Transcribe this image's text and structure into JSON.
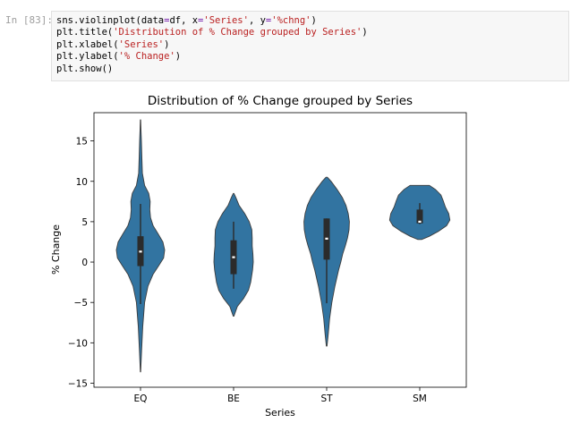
{
  "cell": {
    "prompt": "In [83]:",
    "code": [
      [
        {
          "t": "sns.violinplot(data"
        },
        {
          "t": "=",
          "c": "op"
        },
        {
          "t": "df, x"
        },
        {
          "t": "=",
          "c": "op"
        },
        {
          "t": "'Series'",
          "c": "str"
        },
        {
          "t": ", y"
        },
        {
          "t": "=",
          "c": "op"
        },
        {
          "t": "'%chng'",
          "c": "str"
        },
        {
          "t": ")"
        }
      ],
      [
        {
          "t": "plt.title("
        },
        {
          "t": "'Distribution of % Change grouped by Series'",
          "c": "str"
        },
        {
          "t": ")"
        }
      ],
      [
        {
          "t": "plt.xlabel("
        },
        {
          "t": "'Series'",
          "c": "str"
        },
        {
          "t": ")"
        }
      ],
      [
        {
          "t": "plt.ylabel("
        },
        {
          "t": "'% Change'",
          "c": "str"
        },
        {
          "t": ")"
        }
      ],
      [
        {
          "t": "plt.show()"
        }
      ]
    ]
  },
  "colors": {
    "violin_fill": "#3274a1",
    "box": "#2b2b2b",
    "median": "#ffffff"
  },
  "chart_data": {
    "type": "violin",
    "title": "Distribution of % Change grouped by Series",
    "xlabel": "Series",
    "ylabel": "% Change",
    "ylim": [
      -15.5,
      18.5
    ],
    "yticks": [
      -15,
      -10,
      -5,
      0,
      5,
      10,
      15
    ],
    "ytick_labels": [
      "−15",
      "−10",
      "−5",
      "0",
      "5",
      "10",
      "15"
    ],
    "categories": [
      "EQ",
      "BE",
      "ST",
      "SM"
    ],
    "violins": [
      {
        "category": "EQ",
        "whisker_low": -5.2,
        "q1": -0.5,
        "median": 1.3,
        "q3": 3.2,
        "whisker_high": 7.2,
        "min": -13.6,
        "max": 17.6,
        "profile": [
          [
            -13.6,
            0.005
          ],
          [
            -11,
            0.03
          ],
          [
            -8,
            0.06
          ],
          [
            -5,
            0.11
          ],
          [
            -3,
            0.2
          ],
          [
            -1.5,
            0.34
          ],
          [
            -0.5,
            0.48
          ],
          [
            0.5,
            0.62
          ],
          [
            1.5,
            0.65
          ],
          [
            2.5,
            0.6
          ],
          [
            3.5,
            0.47
          ],
          [
            4.5,
            0.34
          ],
          [
            5.5,
            0.27
          ],
          [
            6.5,
            0.25
          ],
          [
            7.5,
            0.26
          ],
          [
            8.5,
            0.22
          ],
          [
            9.5,
            0.11
          ],
          [
            11,
            0.05
          ],
          [
            13,
            0.035
          ],
          [
            15,
            0.025
          ],
          [
            16.5,
            0.012
          ],
          [
            17.6,
            0.004
          ]
        ]
      },
      {
        "category": "BE",
        "whisker_low": -3.3,
        "q1": -1.5,
        "median": 0.6,
        "q3": 2.7,
        "whisker_high": 5.0,
        "min": -6.7,
        "max": 8.5,
        "profile": [
          [
            -6.7,
            0.01
          ],
          [
            -5.5,
            0.1
          ],
          [
            -4.5,
            0.27
          ],
          [
            -3.5,
            0.4
          ],
          [
            -2.5,
            0.46
          ],
          [
            -1,
            0.51
          ],
          [
            0,
            0.53
          ],
          [
            1,
            0.52
          ],
          [
            2,
            0.5
          ],
          [
            3,
            0.5
          ],
          [
            4,
            0.49
          ],
          [
            5,
            0.42
          ],
          [
            6,
            0.3
          ],
          [
            7,
            0.15
          ],
          [
            8,
            0.06
          ],
          [
            8.5,
            0.01
          ]
        ]
      },
      {
        "category": "ST",
        "whisker_low": -5.1,
        "q1": 0.3,
        "median": 2.9,
        "q3": 5.4,
        "whisker_high": 5.4,
        "min": -10.4,
        "max": 10.5,
        "profile": [
          [
            -10.4,
            0.01
          ],
          [
            -9,
            0.04
          ],
          [
            -7,
            0.08
          ],
          [
            -5,
            0.14
          ],
          [
            -3,
            0.22
          ],
          [
            -1,
            0.32
          ],
          [
            0,
            0.38
          ],
          [
            1,
            0.43
          ],
          [
            2,
            0.5
          ],
          [
            3,
            0.56
          ],
          [
            4,
            0.6
          ],
          [
            5,
            0.61
          ],
          [
            6,
            0.58
          ],
          [
            7,
            0.52
          ],
          [
            8,
            0.42
          ],
          [
            9,
            0.28
          ],
          [
            10,
            0.12
          ],
          [
            10.5,
            0.02
          ]
        ]
      },
      {
        "category": "SM",
        "whisker_low": 4.7,
        "q1": 4.8,
        "median": 5.0,
        "q3": 6.5,
        "whisker_high": 7.3,
        "min": 2.8,
        "max": 9.5,
        "profile": [
          [
            2.8,
            0.05
          ],
          [
            3.2,
            0.26
          ],
          [
            3.8,
            0.5
          ],
          [
            4.5,
            0.72
          ],
          [
            5.2,
            0.81
          ],
          [
            6,
            0.78
          ],
          [
            6.8,
            0.69
          ],
          [
            7.6,
            0.63
          ],
          [
            8.3,
            0.57
          ],
          [
            9,
            0.42
          ],
          [
            9.5,
            0.26
          ]
        ]
      }
    ]
  }
}
